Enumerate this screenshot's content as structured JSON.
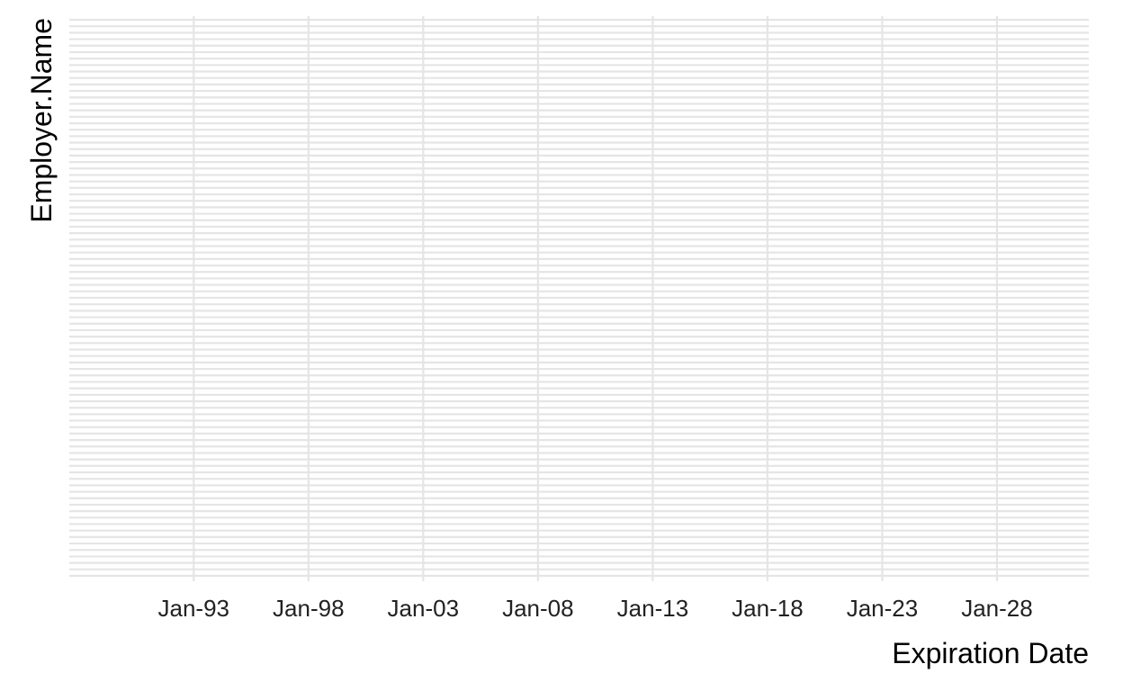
{
  "chart_data": {
    "type": "line",
    "title": "",
    "xlabel": "Expiration Date",
    "ylabel": "Employer.Name",
    "x_scale": "date",
    "x_ticks": [
      "1993-01-01",
      "1998-01-01",
      "2003-01-01",
      "2008-01-01",
      "2013-01-01",
      "2018-01-01",
      "2023-01-01",
      "2028-01-01"
    ],
    "x_tick_labels": [
      "Jan-93",
      "Jan-98",
      "Jan-03",
      "Jan-08",
      "Jan-13",
      "Jan-18",
      "Jan-23",
      "Jan-28"
    ],
    "xlim": [
      "1987-08-01",
      "2032-01-01"
    ],
    "y_categories_count": 87,
    "y_tick_labels": [],
    "series": [],
    "grid": true,
    "legend": "none",
    "colors": {
      "grid": "#e5e5e5",
      "background": "#ffffff",
      "text": "#000000"
    }
  }
}
